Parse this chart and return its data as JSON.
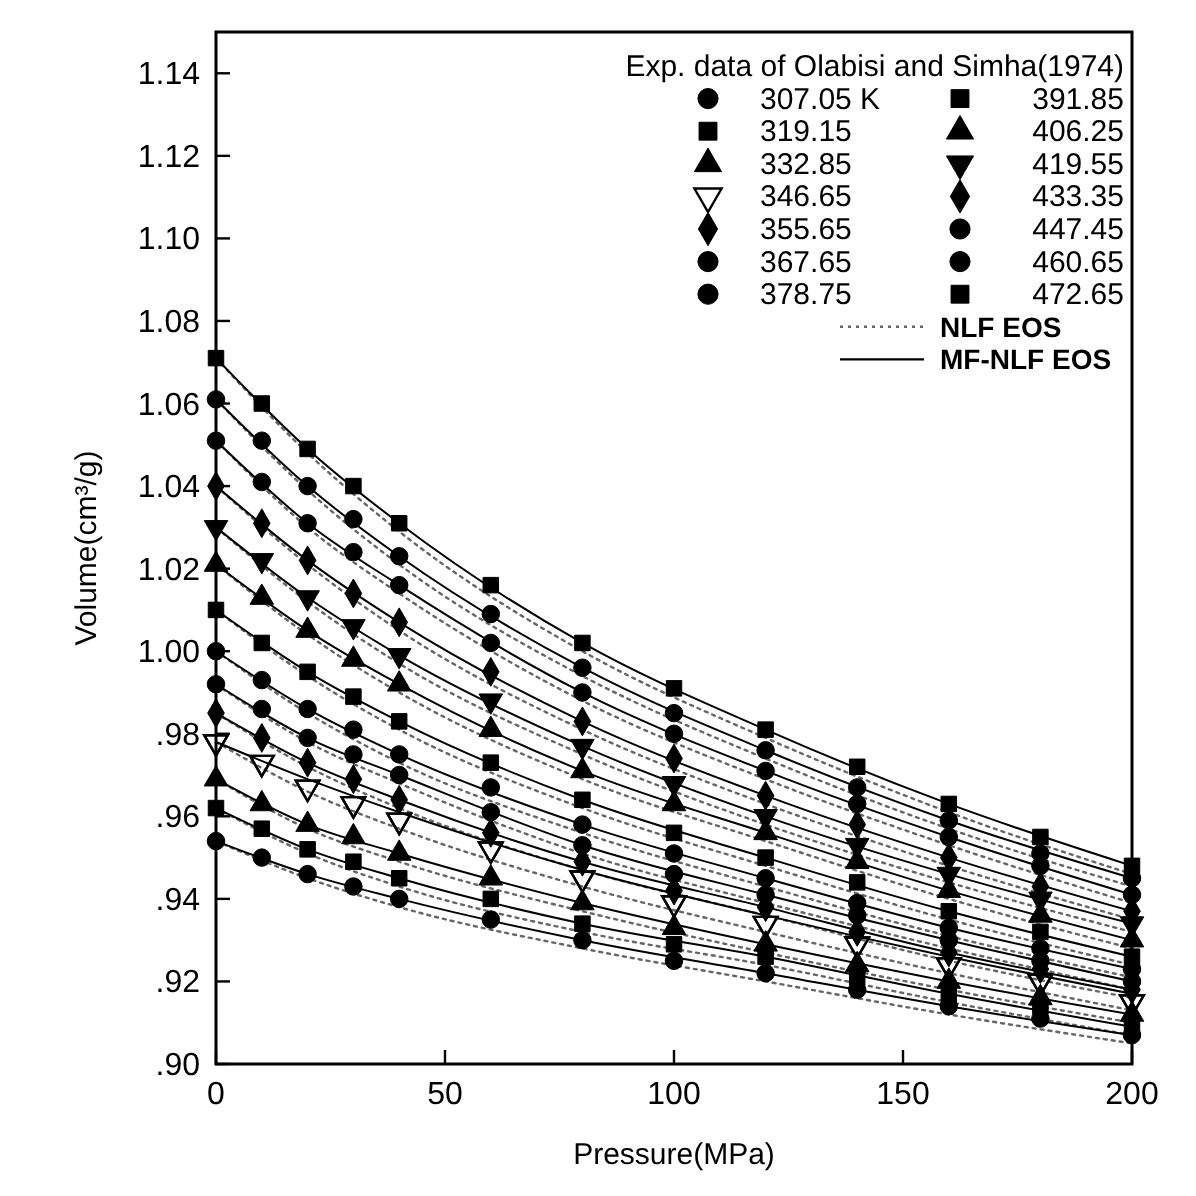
{
  "chart_data": {
    "type": "scatter",
    "xlabel": "Pressure(MPa)",
    "ylabel": "Volume(cm³/g)",
    "legend_title": "Exp. data of Olabisi and Simha(1974)",
    "legend": "top right",
    "grid": false,
    "x": [
      0,
      10,
      20,
      30,
      40,
      60,
      80,
      100,
      120,
      140,
      160,
      180,
      200
    ],
    "xlim": [
      0,
      200
    ],
    "xticks": [
      0,
      50,
      100,
      150,
      200
    ],
    "ylim": [
      0.9,
      1.15
    ],
    "yticks": [
      {
        "value": 0.9,
        "label": ".90"
      },
      {
        "value": 0.92,
        "label": ".92"
      },
      {
        "value": 0.94,
        "label": ".94"
      },
      {
        "value": 0.96,
        "label": ".96"
      },
      {
        "value": 0.98,
        "label": ".98"
      },
      {
        "value": 1.0,
        "label": "1.00"
      },
      {
        "value": 1.02,
        "label": "1.02"
      },
      {
        "value": 1.04,
        "label": "1.04"
      },
      {
        "value": 1.06,
        "label": "1.06"
      },
      {
        "value": 1.08,
        "label": "1.08"
      },
      {
        "value": 1.1,
        "label": "1.10"
      },
      {
        "value": 1.12,
        "label": "1.12"
      },
      {
        "value": 1.14,
        "label": "1.14"
      }
    ],
    "series": [
      {
        "name": "307.05 K",
        "marker": "circle",
        "color": "#000000",
        "values": [
          0.954,
          0.95,
          0.946,
          0.943,
          0.94,
          0.935,
          0.93,
          0.925,
          0.922,
          0.918,
          0.914,
          0.911,
          0.907
        ]
      },
      {
        "name": "319.15",
        "marker": "square",
        "color": "#000000",
        "values": [
          0.962,
          0.957,
          0.952,
          0.949,
          0.945,
          0.94,
          0.934,
          0.929,
          0.926,
          0.921,
          0.917,
          0.914,
          0.909
        ]
      },
      {
        "name": "332.85",
        "marker": "triangle",
        "color": "#000000",
        "values": [
          0.969,
          0.963,
          0.958,
          0.955,
          0.951,
          0.945,
          0.939,
          0.933,
          0.929,
          0.924,
          0.92,
          0.916,
          0.912
        ]
      },
      {
        "name": "346.65",
        "marker": "triangle-down-open",
        "color": "#000000",
        "values": [
          0.978,
          0.973,
          0.967,
          0.963,
          0.959,
          0.952,
          0.945,
          0.939,
          0.934,
          0.929,
          0.924,
          0.92,
          0.915
        ]
      },
      {
        "name": "355.65",
        "marker": "diamond",
        "color": "#000000",
        "values": [
          0.985,
          0.979,
          0.973,
          0.969,
          0.964,
          0.956,
          0.949,
          0.942,
          0.938,
          0.932,
          0.927,
          0.923,
          0.918
        ]
      },
      {
        "name": "367.65",
        "marker": "circle",
        "color": "#000000",
        "values": [
          0.992,
          0.986,
          0.979,
          0.975,
          0.97,
          0.961,
          0.953,
          0.946,
          0.941,
          0.936,
          0.93,
          0.925,
          0.92
        ]
      },
      {
        "name": "378.75",
        "marker": "circle",
        "color": "#000000",
        "values": [
          1.0,
          0.993,
          0.986,
          0.981,
          0.975,
          0.967,
          0.958,
          0.951,
          0.945,
          0.939,
          0.933,
          0.928,
          0.923
        ]
      },
      {
        "name": "391.85",
        "marker": "square",
        "color": "#000000",
        "values": [
          1.01,
          1.002,
          0.995,
          0.989,
          0.983,
          0.973,
          0.964,
          0.956,
          0.95,
          0.944,
          0.937,
          0.932,
          0.926
        ]
      },
      {
        "name": "406.25",
        "marker": "triangle",
        "color": "#000000",
        "values": [
          1.021,
          1.013,
          1.005,
          0.998,
          0.992,
          0.981,
          0.971,
          0.963,
          0.956,
          0.949,
          0.942,
          0.936,
          0.93
        ]
      },
      {
        "name": "419.55",
        "marker": "triangle-down",
        "color": "#000000",
        "values": [
          1.03,
          1.022,
          1.013,
          1.006,
          0.999,
          0.988,
          0.977,
          0.968,
          0.96,
          0.953,
          0.946,
          0.94,
          0.934
        ]
      },
      {
        "name": "433.35",
        "marker": "diamond",
        "color": "#000000",
        "values": [
          1.04,
          1.031,
          1.022,
          1.014,
          1.007,
          0.995,
          0.983,
          0.974,
          0.965,
          0.958,
          0.95,
          0.943,
          0.937
        ]
      },
      {
        "name": "447.45",
        "marker": "circle",
        "color": "#000000",
        "values": [
          1.051,
          1.041,
          1.031,
          1.024,
          1.016,
          1.002,
          0.99,
          0.98,
          0.971,
          0.963,
          0.955,
          0.948,
          0.941
        ]
      },
      {
        "name": "460.65",
        "marker": "circle",
        "color": "#000000",
        "values": [
          1.061,
          1.051,
          1.04,
          1.032,
          1.023,
          1.009,
          0.996,
          0.985,
          0.976,
          0.967,
          0.959,
          0.951,
          0.945
        ]
      },
      {
        "name": "472.65",
        "marker": "square",
        "color": "#000000",
        "values": [
          1.071,
          1.06,
          1.049,
          1.04,
          1.031,
          1.016,
          1.002,
          0.991,
          0.981,
          0.972,
          0.963,
          0.955,
          0.948
        ]
      },
      {
        "name": "NLF EOS",
        "type": "line",
        "line_style": "dotted",
        "color": "#666666",
        "x": [
          0,
          20,
          40,
          80,
          120,
          160,
          200
        ],
        "values": [
          0.954,
          0.945,
          0.938,
          0.928,
          0.92,
          0.912,
          0.905
        ]
      },
      {
        "type": "line",
        "line_style": "dotted",
        "color": "#666666",
        "x": [
          0,
          20,
          40,
          80,
          120,
          160,
          200
        ],
        "values": [
          0.962,
          0.951,
          0.943,
          0.932,
          0.924,
          0.915,
          0.907
        ]
      },
      {
        "type": "line",
        "line_style": "dotted",
        "color": "#666666",
        "x": [
          0,
          20,
          40,
          80,
          120,
          160,
          200
        ],
        "values": [
          0.969,
          0.957,
          0.949,
          0.937,
          0.927,
          0.918,
          0.91
        ]
      },
      {
        "type": "line",
        "line_style": "dotted",
        "color": "#666666",
        "x": [
          0,
          20,
          40,
          80,
          120,
          160,
          200
        ],
        "values": [
          0.978,
          0.966,
          0.957,
          0.943,
          0.932,
          0.922,
          0.913
        ]
      },
      {
        "type": "line",
        "line_style": "dotted",
        "color": "#666666",
        "x": [
          0,
          20,
          40,
          80,
          120,
          160,
          200
        ],
        "values": [
          0.985,
          0.972,
          0.962,
          0.947,
          0.936,
          0.925,
          0.916
        ]
      },
      {
        "type": "line",
        "line_style": "dotted",
        "color": "#666666",
        "x": [
          0,
          20,
          40,
          80,
          120,
          160,
          200
        ],
        "values": [
          0.992,
          0.978,
          0.968,
          0.951,
          0.939,
          0.928,
          0.918
        ]
      },
      {
        "type": "line",
        "line_style": "dotted",
        "color": "#666666",
        "x": [
          0,
          20,
          40,
          80,
          120,
          160,
          200
        ],
        "values": [
          1.0,
          0.985,
          0.973,
          0.956,
          0.943,
          0.931,
          0.921
        ]
      },
      {
        "type": "line",
        "line_style": "dotted",
        "color": "#666666",
        "x": [
          0,
          20,
          40,
          80,
          120,
          160,
          200
        ],
        "values": [
          1.01,
          0.994,
          0.981,
          0.962,
          0.948,
          0.935,
          0.924
        ]
      },
      {
        "type": "line",
        "line_style": "dotted",
        "color": "#666666",
        "x": [
          0,
          20,
          40,
          80,
          120,
          160,
          200
        ],
        "values": [
          1.021,
          1.004,
          0.99,
          0.969,
          0.954,
          0.94,
          0.928
        ]
      },
      {
        "type": "line",
        "line_style": "dotted",
        "color": "#666666",
        "x": [
          0,
          20,
          40,
          80,
          120,
          160,
          200
        ],
        "values": [
          1.03,
          1.012,
          0.997,
          0.975,
          0.958,
          0.944,
          0.932
        ]
      },
      {
        "type": "line",
        "line_style": "dotted",
        "color": "#666666",
        "x": [
          0,
          20,
          40,
          80,
          120,
          160,
          200
        ],
        "values": [
          1.04,
          1.021,
          1.005,
          0.981,
          0.963,
          0.948,
          0.935
        ]
      },
      {
        "type": "line",
        "line_style": "dotted",
        "color": "#666666",
        "x": [
          0,
          20,
          40,
          80,
          120,
          160,
          200
        ],
        "values": [
          1.051,
          1.03,
          1.014,
          0.988,
          0.969,
          0.953,
          0.939
        ]
      },
      {
        "type": "line",
        "line_style": "dotted",
        "color": "#666666",
        "x": [
          0,
          20,
          40,
          80,
          120,
          160,
          200
        ],
        "values": [
          1.061,
          1.039,
          1.021,
          0.994,
          0.974,
          0.957,
          0.943
        ]
      },
      {
        "type": "line",
        "line_style": "dotted",
        "color": "#666666",
        "x": [
          0,
          20,
          40,
          80,
          120,
          160,
          200
        ],
        "values": [
          1.071,
          1.048,
          1.029,
          1.0,
          0.979,
          0.961,
          0.946
        ]
      },
      {
        "name": "MF-NLF EOS",
        "type": "line",
        "line_style": "solid",
        "color": "#000000",
        "x": [
          0,
          20,
          40,
          80,
          120,
          160,
          200
        ],
        "values": [
          0.954,
          0.946,
          0.94,
          0.93,
          0.922,
          0.914,
          0.907
        ]
      },
      {
        "type": "line",
        "line_style": "solid",
        "color": "#000000",
        "x": [
          0,
          20,
          40,
          80,
          120,
          160,
          200
        ],
        "values": [
          0.962,
          0.952,
          0.945,
          0.934,
          0.926,
          0.917,
          0.909
        ]
      },
      {
        "type": "line",
        "line_style": "solid",
        "color": "#000000",
        "x": [
          0,
          20,
          40,
          80,
          120,
          160,
          200
        ],
        "values": [
          0.969,
          0.958,
          0.951,
          0.939,
          0.929,
          0.92,
          0.912
        ]
      },
      {
        "type": "line",
        "line_style": "solid",
        "color": "#000000",
        "x": [
          0,
          20,
          40,
          80,
          120,
          160,
          200
        ],
        "values": [
          0.978,
          0.969,
          0.961,
          0.947,
          0.936,
          0.926,
          0.917
        ]
      },
      {
        "type": "line",
        "line_style": "solid",
        "color": "#000000",
        "x": [
          0,
          20,
          40,
          80,
          120,
          160,
          200
        ],
        "values": [
          0.985,
          0.973,
          0.964,
          0.949,
          0.938,
          0.927,
          0.918
        ]
      },
      {
        "type": "line",
        "line_style": "solid",
        "color": "#000000",
        "x": [
          0,
          20,
          40,
          80,
          120,
          160,
          200
        ],
        "values": [
          0.992,
          0.979,
          0.97,
          0.953,
          0.941,
          0.93,
          0.92
        ]
      },
      {
        "type": "line",
        "line_style": "solid",
        "color": "#000000",
        "x": [
          0,
          20,
          40,
          80,
          120,
          160,
          200
        ],
        "values": [
          1.0,
          0.986,
          0.975,
          0.958,
          0.945,
          0.933,
          0.923
        ]
      },
      {
        "type": "line",
        "line_style": "solid",
        "color": "#000000",
        "x": [
          0,
          20,
          40,
          80,
          120,
          160,
          200
        ],
        "values": [
          1.01,
          0.995,
          0.983,
          0.964,
          0.95,
          0.937,
          0.926
        ]
      },
      {
        "type": "line",
        "line_style": "solid",
        "color": "#000000",
        "x": [
          0,
          20,
          40,
          80,
          120,
          160,
          200
        ],
        "values": [
          1.021,
          1.005,
          0.992,
          0.971,
          0.956,
          0.942,
          0.93
        ]
      },
      {
        "type": "line",
        "line_style": "solid",
        "color": "#000000",
        "x": [
          0,
          20,
          40,
          80,
          120,
          160,
          200
        ],
        "values": [
          1.03,
          1.013,
          0.999,
          0.977,
          0.96,
          0.946,
          0.934
        ]
      },
      {
        "type": "line",
        "line_style": "solid",
        "color": "#000000",
        "x": [
          0,
          20,
          40,
          80,
          120,
          160,
          200
        ],
        "values": [
          1.04,
          1.022,
          1.007,
          0.983,
          0.965,
          0.95,
          0.937
        ]
      },
      {
        "type": "line",
        "line_style": "solid",
        "color": "#000000",
        "x": [
          0,
          20,
          40,
          80,
          120,
          160,
          200
        ],
        "values": [
          1.051,
          1.031,
          1.016,
          0.99,
          0.971,
          0.955,
          0.941
        ]
      },
      {
        "type": "line",
        "line_style": "solid",
        "color": "#000000",
        "x": [
          0,
          20,
          40,
          80,
          120,
          160,
          200
        ],
        "values": [
          1.061,
          1.04,
          1.023,
          0.996,
          0.976,
          0.959,
          0.945
        ]
      },
      {
        "type": "line",
        "line_style": "solid",
        "color": "#000000",
        "x": [
          0,
          20,
          40,
          80,
          120,
          160,
          200
        ],
        "values": [
          1.071,
          1.049,
          1.031,
          1.002,
          0.981,
          0.963,
          0.948
        ]
      }
    ]
  }
}
